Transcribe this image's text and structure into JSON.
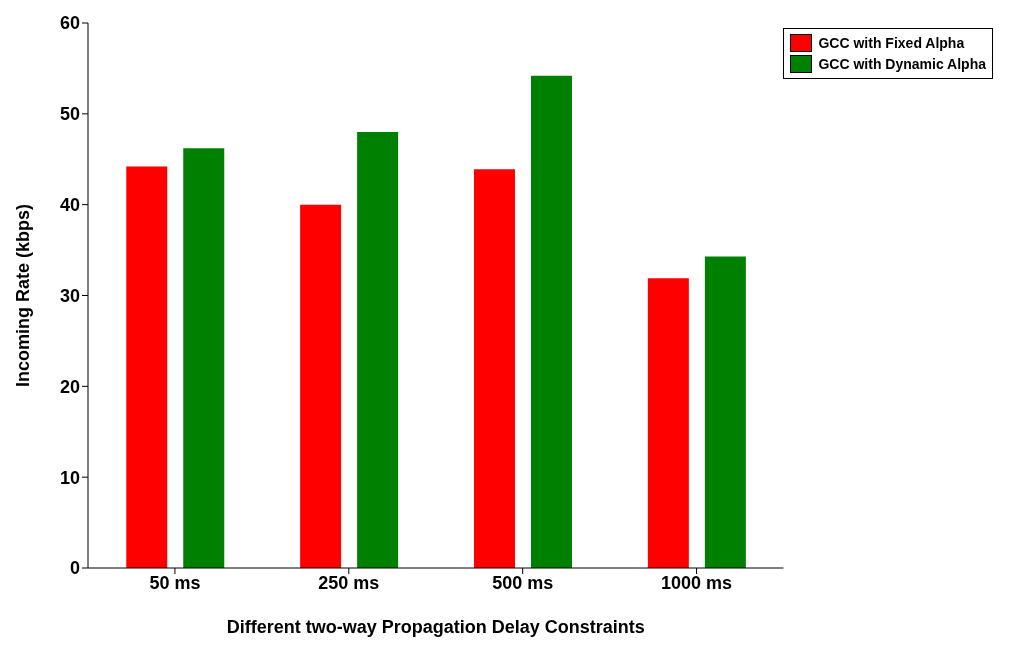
{
  "chart_data": {
    "type": "bar",
    "xlabel": "Different two-way Propagation Delay Constraints",
    "ylabel": "Incoming Rate (kbps)",
    "categories": [
      "50 ms",
      "250 ms",
      "500 ms",
      "1000 ms"
    ],
    "series": [
      {
        "name": "GCC with Fixed Alpha",
        "color": "#ff0000",
        "values": [
          44.2,
          40.0,
          43.9,
          31.9
        ]
      },
      {
        "name": "GCC with Dynamic Alpha",
        "color": "#008000",
        "values": [
          46.2,
          48.0,
          54.2,
          34.3
        ]
      }
    ],
    "ylim": [
      0,
      60
    ],
    "yticks": [
      0,
      10,
      20,
      30,
      40,
      50,
      60
    ],
    "grid": false,
    "legend": "top right"
  }
}
